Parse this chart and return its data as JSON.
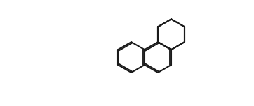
{
  "bg_color": "#ffffff",
  "line_color": "#1a1a1a",
  "line_width": 1.5,
  "font_size": 9,
  "figsize": [
    3.62,
    1.52
  ],
  "dpi": 100
}
